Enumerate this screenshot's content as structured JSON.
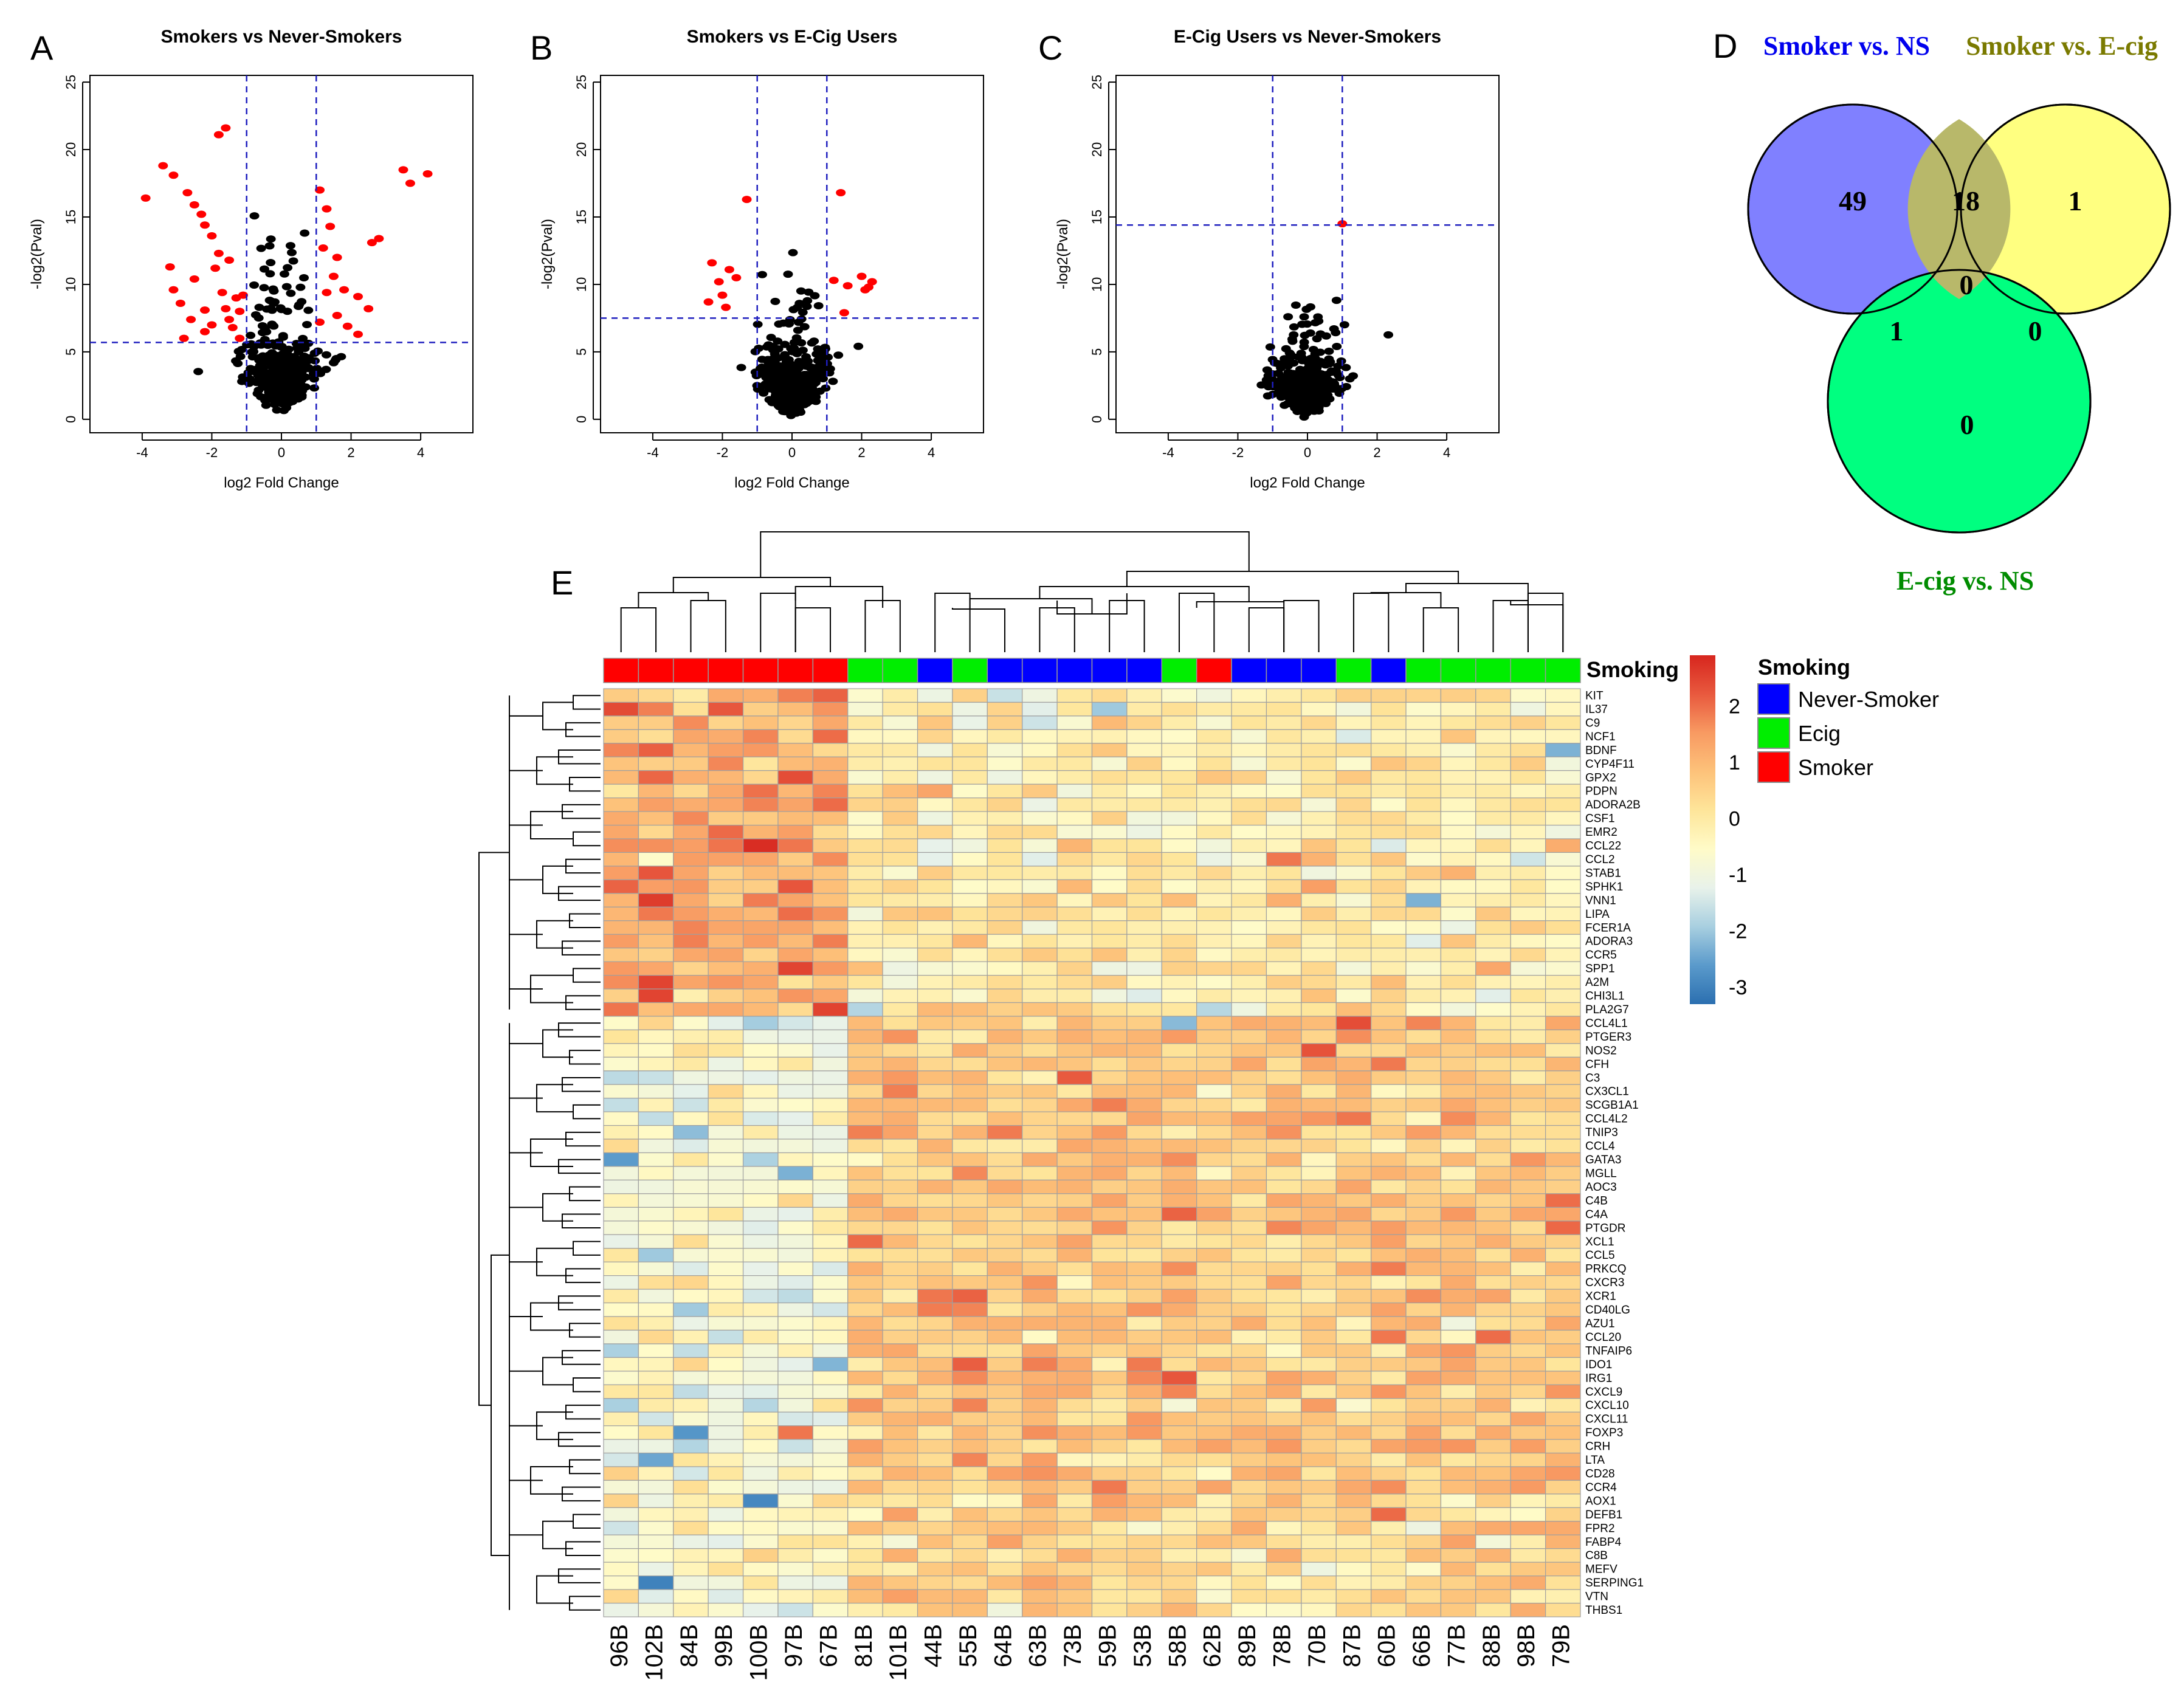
{
  "panel_labels": [
    "A",
    "B",
    "C",
    "D",
    "E"
  ],
  "chart_data": [
    {
      "type": "scatter",
      "panel": "A",
      "title": "Smokers vs Never-Smokers",
      "xlabel": "log2 Fold Change",
      "ylabel": "-log2(Pval)",
      "xlim": [
        -5.5,
        5.5
      ],
      "ylim": [
        -1,
        25.5
      ],
      "xticks": [
        -4,
        -2,
        0,
        2,
        4
      ],
      "yticks": [
        0,
        5,
        10,
        15,
        20,
        25
      ],
      "vlines": [
        -1,
        1
      ],
      "hline": 5.7,
      "highlighted_points": [
        [
          -3.9,
          16.4
        ],
        [
          -3.4,
          18.8
        ],
        [
          -3.1,
          18.1
        ],
        [
          -2.7,
          16.8
        ],
        [
          -2.5,
          15.9
        ],
        [
          -2.3,
          15.2
        ],
        [
          -2.2,
          14.4
        ],
        [
          -2.0,
          13.6
        ],
        [
          -1.6,
          21.6
        ],
        [
          -1.8,
          21.1
        ],
        [
          -3.2,
          11.3
        ],
        [
          -3.1,
          9.6
        ],
        [
          -2.9,
          8.6
        ],
        [
          -2.6,
          7.4
        ],
        [
          -2.5,
          10.4
        ],
        [
          -2.2,
          8.1
        ],
        [
          -2.0,
          7.0
        ],
        [
          -1.9,
          11.2
        ],
        [
          -1.8,
          12.3
        ],
        [
          -1.7,
          9.4
        ],
        [
          -1.6,
          8.2
        ],
        [
          -1.5,
          7.4
        ],
        [
          -1.4,
          6.8
        ],
        [
          -1.3,
          9.0
        ],
        [
          -1.2,
          8.0
        ],
        [
          -1.1,
          9.2
        ],
        [
          -2.8,
          6.0
        ],
        [
          -2.2,
          6.5
        ],
        [
          -1.2,
          6.0
        ],
        [
          -1.5,
          11.8
        ],
        [
          1.1,
          17.0
        ],
        [
          1.3,
          15.6
        ],
        [
          1.4,
          14.3
        ],
        [
          1.2,
          12.7
        ],
        [
          1.6,
          12.0
        ],
        [
          1.5,
          10.6
        ],
        [
          1.3,
          9.4
        ],
        [
          1.8,
          9.6
        ],
        [
          2.2,
          9.1
        ],
        [
          2.5,
          8.2
        ],
        [
          1.1,
          7.2
        ],
        [
          1.6,
          7.7
        ],
        [
          1.9,
          6.9
        ],
        [
          2.2,
          6.3
        ],
        [
          2.6,
          13.1
        ],
        [
          2.8,
          13.4
        ],
        [
          3.5,
          18.5
        ],
        [
          3.7,
          17.5
        ],
        [
          4.2,
          18.2
        ]
      ],
      "series_note": "black points = not significant (several hundred genes); red points = significant"
    },
    {
      "type": "scatter",
      "panel": "B",
      "title": "Smokers vs E-Cig Users",
      "xlabel": "log2 Fold Change",
      "ylabel": "-log2(Pval)",
      "xlim": [
        -5.5,
        5.5
      ],
      "ylim": [
        -1,
        25.5
      ],
      "xticks": [
        -4,
        -2,
        0,
        2,
        4
      ],
      "yticks": [
        0,
        5,
        10,
        15,
        20,
        25
      ],
      "vlines": [
        -1,
        1
      ],
      "hline": 7.5,
      "highlighted_points": [
        [
          -1.3,
          16.3
        ],
        [
          -2.3,
          11.6
        ],
        [
          -2.1,
          10.2
        ],
        [
          -2.0,
          9.2
        ],
        [
          -1.9,
          8.3
        ],
        [
          -2.4,
          8.7
        ],
        [
          -1.8,
          11.1
        ],
        [
          -1.6,
          10.5
        ],
        [
          1.4,
          16.8
        ],
        [
          1.2,
          10.3
        ],
        [
          1.6,
          9.9
        ],
        [
          1.5,
          7.9
        ],
        [
          2.0,
          10.6
        ],
        [
          2.2,
          9.8
        ],
        [
          2.3,
          10.2
        ],
        [
          2.1,
          9.6
        ]
      ],
      "series_note": "black points = not significant; red points = significant"
    },
    {
      "type": "scatter",
      "panel": "C",
      "title": "E-Cig Users vs Never-Smokers",
      "xlabel": "log2 Fold Change",
      "ylabel": "-log2(Pval)",
      "xlim": [
        -5.5,
        5.5
      ],
      "ylim": [
        -1,
        25.5
      ],
      "xticks": [
        -4,
        -2,
        0,
        2,
        4
      ],
      "yticks": [
        0,
        5,
        10,
        15,
        20,
        25
      ],
      "vlines": [
        -1,
        1
      ],
      "hline": 14.4,
      "highlighted_points": [
        [
          1.0,
          14.5
        ]
      ],
      "series_note": "black points = not significant; red point = significant"
    },
    {
      "type": "venn",
      "panel": "D",
      "sets": [
        {
          "label": "Smoker vs. NS",
          "color": "#0000ee",
          "fill": "#8080ff"
        },
        {
          "label": "Smoker vs. E-cig",
          "color": "#7a7a00",
          "fill": "#ffff80"
        },
        {
          "label": "E-cig vs. NS",
          "color": "#008c00",
          "fill": "#00ff80"
        }
      ],
      "regions": {
        "A_only": "49",
        "AB": "18",
        "B_only": "1",
        "ABC": "0",
        "AC": "1",
        "BC": "0",
        "C_only": "0"
      }
    },
    {
      "type": "heatmap",
      "panel": "E",
      "samples": [
        "96B",
        "102B",
        "84B",
        "99B",
        "100B",
        "97B",
        "67B",
        "81B",
        "101B",
        "44B",
        "55B",
        "64B",
        "63B",
        "73B",
        "59B",
        "53B",
        "58B",
        "62B",
        "89B",
        "78B",
        "70B",
        "87B",
        "60B",
        "66B",
        "77B",
        "88B",
        "98B",
        "79B"
      ],
      "sample_groups": [
        "Smoker",
        "Smoker",
        "Smoker",
        "Smoker",
        "Smoker",
        "Smoker",
        "Smoker",
        "Ecig",
        "Ecig",
        "Never-Smoker",
        "Ecig",
        "Never-Smoker",
        "Never-Smoker",
        "Never-Smoker",
        "Never-Smoker",
        "Never-Smoker",
        "Ecig",
        "Smoker",
        "Never-Smoker",
        "Never-Smoker",
        "Never-Smoker",
        "Ecig",
        "Never-Smoker",
        "Ecig",
        "Ecig",
        "Ecig",
        "Ecig",
        "Ecig"
      ],
      "genes": [
        "KIT",
        "IL37",
        "C9",
        "NCF1",
        "BDNF",
        "CYP4F11",
        "GPX2",
        "PDPN",
        "ADORA2B",
        "CSF1",
        "EMR2",
        "CCL22",
        "CCL2",
        "STAB1",
        "SPHK1",
        "VNN1",
        "LIPA",
        "FCER1A",
        "ADORA3",
        "CCR5",
        "SPP1",
        "A2M",
        "CHI3L1",
        "PLA2G7",
        "CCL4L1",
        "PTGER3",
        "NOS2",
        "CFH",
        "C3",
        "CX3CL1",
        "SCGB1A1",
        "CCL4L2",
        "TNIP3",
        "CCL4",
        "GATA3",
        "MGLL",
        "AOC3",
        "C4B",
        "C4A",
        "PTGDR",
        "XCL1",
        "CCL5",
        "PRKCQ",
        "CXCR3",
        "XCR1",
        "CD40LG",
        "AZU1",
        "CCL20",
        "TNFAIP6",
        "IDO1",
        "IRG1",
        "CXCL9",
        "CXCL10",
        "CXCL11",
        "FOXP3",
        "CRH",
        "LTA",
        "CD28",
        "CCR4",
        "AOX1",
        "DEFB1",
        "FPR2",
        "FABP4",
        "C8B",
        "MEFV",
        "SERPING1",
        "VTN",
        "THBS1"
      ],
      "gene_blocks": [
        {
          "rows": [
            0,
            24
          ],
          "smoker": 1.2,
          "other": -0.1
        },
        {
          "rows": [
            24,
            59
          ],
          "smoker": -0.8,
          "other": 0.7
        },
        {
          "rows": [
            59,
            68
          ],
          "smoker": -0.6,
          "other": 0.4
        }
      ],
      "notable_cells": [
        {
          "gene": "VNN1",
          "sample": "102B",
          "value": 2.6
        },
        {
          "gene": "A2M",
          "sample": "102B",
          "value": 2.5
        },
        {
          "gene": "CHI3L1",
          "sample": "102B",
          "value": 2.5
        },
        {
          "gene": "KIT",
          "sample": "97B",
          "value": 1.8
        },
        {
          "gene": "LIPA",
          "sample": "97B",
          "value": 2.0
        },
        {
          "gene": "C3",
          "sample": "73B",
          "value": 2.2
        },
        {
          "gene": "NOS2",
          "sample": "70B",
          "value": 2.3
        },
        {
          "gene": "XCR1",
          "sample": "44B",
          "value": 1.9
        },
        {
          "gene": "FOXP3",
          "sample": "97B",
          "value": 1.9
        },
        {
          "gene": "C4B",
          "sample": "79B",
          "value": 2.0
        },
        {
          "gene": "AOX1",
          "sample": "100B",
          "value": -2.9
        },
        {
          "gene": "SERPING1",
          "sample": "102B",
          "value": -3.0
        },
        {
          "gene": "BDNF",
          "sample": "79B",
          "value": -2.3
        },
        {
          "gene": "VNN1",
          "sample": "66B",
          "value": -2.3
        },
        {
          "gene": "CCL4L1",
          "sample": "58B",
          "value": -2.2
        },
        {
          "gene": "GATA3",
          "sample": "96B",
          "value": -2.6
        },
        {
          "gene": "IL37",
          "sample": "59B",
          "value": -2.0
        }
      ],
      "annotation_label": "Smoking",
      "legend": {
        "title": "Smoking",
        "entries": [
          {
            "label": "Never-Smoker",
            "color": "#0000ff"
          },
          {
            "label": "Ecig",
            "color": "#00ee00"
          },
          {
            "label": "Smoker",
            "color": "#ff0000"
          }
        ]
      },
      "colorbar": {
        "ticks": [
          "2",
          "1",
          "0",
          "-1",
          "-2",
          "-3"
        ],
        "range": [
          -3.3,
          2.9
        ],
        "colors": [
          "#2b6fb0",
          "#5a9acb",
          "#a8cfe0",
          "#e8f2ea",
          "#fffbc8",
          "#fee59a",
          "#fdc27a",
          "#f89a62",
          "#e8593e",
          "#d7261e"
        ]
      }
    }
  ]
}
